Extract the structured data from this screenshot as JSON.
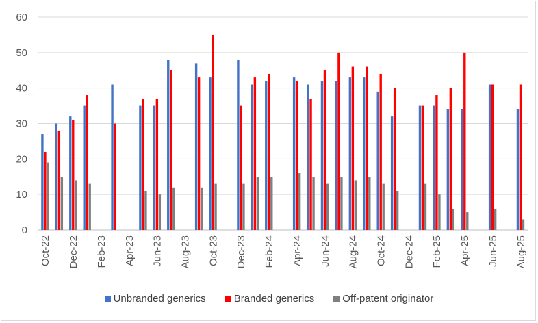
{
  "chart_data": {
    "type": "bar",
    "title": "",
    "xlabel": "",
    "ylabel": "",
    "ylim": [
      0,
      60
    ],
    "yticks": [
      0,
      10,
      20,
      30,
      40,
      50,
      60
    ],
    "grid": true,
    "legend_position": "bottom",
    "categories": [
      "Oct-22",
      "Nov-22",
      "Dec-22",
      "Jan-23",
      "Feb-23",
      "Mar-23",
      "Apr-23",
      "May-23",
      "Jun-23",
      "Jul-23",
      "Aug-23",
      "Sep-23",
      "Oct-23",
      "Nov-23",
      "Dec-23",
      "Jan-24",
      "Feb-24",
      "Mar-24",
      "Apr-24",
      "May-24",
      "Jun-24",
      "Jul-24",
      "Aug-24",
      "Sep-24",
      "Oct-24",
      "Nov-24",
      "Dec-24",
      "Jan-25",
      "Feb-25",
      "Mar-25",
      "Apr-25",
      "May-25",
      "Jun-25",
      "Jul-25",
      "Aug-25"
    ],
    "tick_labels": [
      "Oct-22",
      "Dec-22",
      "Feb-23",
      "Apr-23",
      "Jun-23",
      "Aug-23",
      "Oct-23",
      "Dec-23",
      "Feb-24",
      "Apr-24",
      "Jun-24",
      "Aug-24",
      "Oct-24",
      "Dec-24",
      "Feb-25",
      "Apr-25",
      "Jun-25",
      "Aug-25"
    ],
    "series": [
      {
        "name": "Unbranded generics",
        "color": "#4472c4",
        "values": [
          27,
          30,
          32,
          35,
          null,
          41,
          null,
          35,
          35,
          48,
          null,
          47,
          43,
          null,
          48,
          41,
          42,
          null,
          43,
          41,
          42,
          42,
          43,
          43,
          39,
          32,
          null,
          35,
          35,
          34,
          34,
          null,
          41,
          null,
          34
        ]
      },
      {
        "name": "Branded generics",
        "color": "#ff0000",
        "values": [
          22,
          28,
          31,
          38,
          null,
          30,
          null,
          37,
          37,
          45,
          null,
          43,
          55,
          null,
          35,
          43,
          44,
          null,
          42,
          37,
          45,
          50,
          46,
          46,
          44,
          40,
          null,
          35,
          38,
          40,
          50,
          null,
          41,
          null,
          41
        ]
      },
      {
        "name": "Off-patent originator",
        "color": "#7f7f7f",
        "values": [
          19,
          15,
          14,
          13,
          null,
          null,
          null,
          11,
          10,
          12,
          null,
          12,
          13,
          null,
          13,
          15,
          15,
          null,
          16,
          15,
          13,
          15,
          14,
          15,
          13,
          11,
          null,
          13,
          10,
          6,
          5,
          null,
          6,
          null,
          3
        ]
      }
    ]
  }
}
